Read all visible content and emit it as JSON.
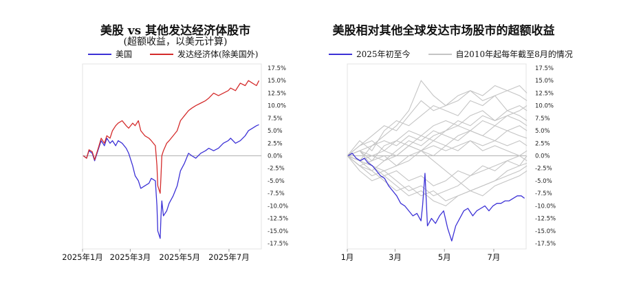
{
  "chart_data": [
    {
      "type": "line",
      "title": "美股 vs 其他发达经济体股市",
      "subtitle": "(超额收益，以美元计算)",
      "x_tick_labels": [
        "2025年1月",
        "2025年3月",
        "2025年5月",
        "2025年7月"
      ],
      "y_tick_labels": [
        "17.5%",
        "15.0%",
        "12.5%",
        "10.0%",
        "7.5%",
        "5.0%",
        "2.5%",
        "0.0%",
        "-2.5%",
        "-5.0%",
        "-7.5%",
        "-10.0%",
        "-12.5%",
        "-15.0%",
        "-17.5%"
      ],
      "ylim": [
        -17.5,
        17.5
      ],
      "x_months": [
        "2025-01-01",
        "2025-03-01",
        "2025-05-01",
        "2025-07-01"
      ],
      "series": [
        {
          "name": "美国",
          "color": "#3b30d6",
          "x": [
            "2025-01-02",
            "2025-01-06",
            "2025-01-09",
            "2025-01-13",
            "2025-01-16",
            "2025-01-21",
            "2025-01-24",
            "2025-01-28",
            "2025-01-31",
            "2025-02-04",
            "2025-02-07",
            "2025-02-11",
            "2025-02-14",
            "2025-02-19",
            "2025-02-24",
            "2025-02-27",
            "2025-03-04",
            "2025-03-07",
            "2025-03-11",
            "2025-03-14",
            "2025-03-19",
            "2025-03-24",
            "2025-03-27",
            "2025-04-01",
            "2025-04-03",
            "2025-04-04",
            "2025-04-07",
            "2025-04-08",
            "2025-04-09",
            "2025-04-11",
            "2025-04-15",
            "2025-04-18",
            "2025-04-23",
            "2025-04-28",
            "2025-05-02",
            "2025-05-07",
            "2025-05-12",
            "2025-05-16",
            "2025-05-21",
            "2025-05-27",
            "2025-06-02",
            "2025-06-06",
            "2025-06-12",
            "2025-06-18",
            "2025-06-24",
            "2025-06-30",
            "2025-07-03",
            "2025-07-09",
            "2025-07-15",
            "2025-07-21",
            "2025-07-25",
            "2025-07-30",
            "2025-08-04",
            "2025-08-07"
          ],
          "values": [
            0.0,
            -0.5,
            1.0,
            0.5,
            -1.0,
            1.5,
            3.0,
            2.0,
            3.5,
            2.5,
            3.0,
            2.0,
            3.0,
            2.5,
            1.5,
            0.5,
            -2.0,
            -4.0,
            -5.0,
            -6.5,
            -6.0,
            -5.5,
            -4.5,
            -5.0,
            -10.0,
            -15.0,
            -16.5,
            -12.0,
            -9.0,
            -12.0,
            -11.0,
            -9.5,
            -8.0,
            -6.0,
            -3.0,
            -1.5,
            0.5,
            0.0,
            -0.5,
            0.5,
            1.0,
            1.5,
            1.0,
            1.5,
            2.5,
            3.0,
            3.5,
            2.5,
            3.0,
            4.0,
            5.0,
            5.5,
            6.0,
            6.2
          ]
        },
        {
          "name": "发达经济体(除美国外)",
          "color": "#d42a2a",
          "x": [
            "2025-01-02",
            "2025-01-06",
            "2025-01-09",
            "2025-01-13",
            "2025-01-16",
            "2025-01-21",
            "2025-01-24",
            "2025-01-28",
            "2025-01-31",
            "2025-02-04",
            "2025-02-07",
            "2025-02-11",
            "2025-02-14",
            "2025-02-19",
            "2025-02-24",
            "2025-02-27",
            "2025-03-04",
            "2025-03-07",
            "2025-03-11",
            "2025-03-14",
            "2025-03-19",
            "2025-03-24",
            "2025-03-27",
            "2025-04-01",
            "2025-04-03",
            "2025-04-04",
            "2025-04-07",
            "2025-04-08",
            "2025-04-09",
            "2025-04-11",
            "2025-04-15",
            "2025-04-18",
            "2025-04-23",
            "2025-04-28",
            "2025-05-02",
            "2025-05-07",
            "2025-05-12",
            "2025-05-16",
            "2025-05-21",
            "2025-05-27",
            "2025-06-02",
            "2025-06-06",
            "2025-06-12",
            "2025-06-18",
            "2025-06-24",
            "2025-06-30",
            "2025-07-03",
            "2025-07-09",
            "2025-07-15",
            "2025-07-21",
            "2025-07-25",
            "2025-07-30",
            "2025-08-04",
            "2025-08-07"
          ],
          "values": [
            0.0,
            -0.5,
            1.2,
            0.8,
            -0.8,
            1.8,
            3.5,
            2.5,
            4.0,
            3.5,
            5.0,
            6.0,
            6.5,
            7.0,
            6.0,
            5.5,
            6.5,
            6.0,
            7.0,
            5.0,
            4.0,
            3.5,
            3.0,
            2.0,
            -2.0,
            -6.0,
            -7.5,
            -4.0,
            0.0,
            1.0,
            2.5,
            3.0,
            4.0,
            5.0,
            7.0,
            8.0,
            9.0,
            9.5,
            10.0,
            10.5,
            11.0,
            11.5,
            12.5,
            12.0,
            12.5,
            13.0,
            13.5,
            13.0,
            14.5,
            14.0,
            15.0,
            14.5,
            14.0,
            15.0
          ]
        }
      ]
    },
    {
      "type": "line",
      "title": "美股相对其他全球发达市场股市的超额收益",
      "x_tick_labels": [
        "1月",
        "3月",
        "5月",
        "7月"
      ],
      "y_tick_labels": [
        "17.5%",
        "15.0%",
        "12.5%",
        "10.0%",
        "7.5%",
        "5.0%",
        "2.5%",
        "0.0%",
        "-2.5%",
        "-5.0%",
        "-7.5%",
        "-10.0%",
        "-12.5%",
        "-15.0%",
        "-17.5%"
      ],
      "ylim": [
        -17.5,
        17.5
      ],
      "x_months": [
        "2025-01-01",
        "2025-03-01",
        "2025-05-01",
        "2025-07-01"
      ],
      "series": [
        {
          "name": "2025年初至今",
          "color": "#3b30d6",
          "x": [
            "2025-01-02",
            "2025-01-07",
            "2025-01-12",
            "2025-01-17",
            "2025-01-22",
            "2025-01-27",
            "2025-02-01",
            "2025-02-06",
            "2025-02-11",
            "2025-02-16",
            "2025-02-21",
            "2025-02-26",
            "2025-03-03",
            "2025-03-08",
            "2025-03-13",
            "2025-03-18",
            "2025-03-23",
            "2025-03-28",
            "2025-04-02",
            "2025-04-04",
            "2025-04-07",
            "2025-04-10",
            "2025-04-15",
            "2025-04-20",
            "2025-04-25",
            "2025-04-30",
            "2025-05-05",
            "2025-05-10",
            "2025-05-15",
            "2025-05-20",
            "2025-05-25",
            "2025-05-30",
            "2025-06-05",
            "2025-06-10",
            "2025-06-15",
            "2025-06-20",
            "2025-06-25",
            "2025-06-30",
            "2025-07-05",
            "2025-07-10",
            "2025-07-15",
            "2025-07-20",
            "2025-07-25",
            "2025-07-30",
            "2025-08-04",
            "2025-08-08"
          ],
          "values": [
            0.0,
            0.5,
            -0.5,
            -1.0,
            -0.5,
            -1.5,
            -2.0,
            -3.0,
            -4.0,
            -4.5,
            -6.0,
            -7.0,
            -8.0,
            -9.5,
            -10.0,
            -11.0,
            -12.0,
            -11.5,
            -13.0,
            -10.0,
            -3.5,
            -14.0,
            -12.5,
            -13.5,
            -12.0,
            -11.0,
            -14.5,
            -17.0,
            -14.0,
            -12.5,
            -11.0,
            -10.5,
            -12.0,
            -11.0,
            -10.5,
            -10.0,
            -11.0,
            -10.0,
            -9.5,
            -9.5,
            -9.0,
            -9.0,
            -8.5,
            -8.0,
            -8.0,
            -8.5
          ]
        },
        {
          "name": "自2010年起每年截至8月的情况",
          "color": "#c4c4c4",
          "x_months_index": [
            0,
            0.5,
            1,
            1.5,
            2,
            2.5,
            3,
            3.5,
            4,
            4.5,
            5,
            5.5,
            6,
            6.5,
            7,
            7.3
          ],
          "lines": [
            [
              0,
              2,
              4,
              6,
              5,
              8,
              11,
              9,
              10,
              12,
              13,
              11,
              12,
              13,
              14,
              12.5
            ],
            [
              0,
              -1,
              2,
              4,
              6,
              9,
              15,
              12,
              10,
              11,
              13,
              12,
              14,
              13,
              12,
              11
            ],
            [
              0,
              3,
              1,
              5,
              7,
              6,
              8,
              10,
              9,
              8,
              11,
              10,
              12,
              9,
              10,
              9
            ],
            [
              0,
              1,
              -1,
              2,
              3,
              5,
              4,
              6,
              7,
              6,
              8,
              9,
              7,
              8,
              9,
              10
            ],
            [
              0,
              -2,
              -3,
              -1,
              1,
              3,
              2,
              4,
              5,
              7,
              6,
              8,
              7,
              9,
              8,
              7
            ],
            [
              0,
              2,
              3,
              1,
              0,
              2,
              4,
              3,
              5,
              6,
              5,
              7,
              6,
              8,
              7,
              6
            ],
            [
              0,
              -1,
              0,
              1,
              3,
              2,
              1,
              3,
              2,
              4,
              5,
              4,
              6,
              5,
              6,
              5
            ],
            [
              0,
              1,
              2,
              3,
              2,
              4,
              3,
              5,
              4,
              3,
              5,
              4,
              3,
              5,
              4,
              3.5
            ],
            [
              0,
              -2,
              -1,
              0,
              -2,
              -1,
              1,
              0,
              2,
              1,
              3,
              2,
              3,
              2,
              3,
              2
            ],
            [
              0,
              1,
              0,
              -1,
              0,
              2,
              1,
              2,
              1,
              2,
              3,
              1,
              2,
              1,
              0,
              -1
            ],
            [
              0,
              -1,
              -2,
              -4,
              -3,
              -5,
              -4,
              -6,
              -5,
              -3,
              -4,
              -2,
              -3,
              -1,
              -2,
              -1.5
            ],
            [
              0,
              -1,
              -3,
              -5,
              -7,
              -6,
              -8,
              -7,
              -9,
              -8,
              -7,
              -6,
              -5,
              -4,
              -3,
              -2
            ],
            [
              0,
              -2,
              -4,
              -3,
              -5,
              -7,
              -6,
              -8,
              -7,
              -6,
              -4,
              -3,
              -2,
              -1,
              0,
              1
            ],
            [
              0,
              -3,
              -5,
              -4,
              -6,
              -8,
              -7,
              -9,
              -10,
              -8,
              -7,
              -8,
              -6,
              -5,
              -4,
              -3
            ],
            [
              0,
              1,
              -2,
              -3,
              -2,
              0,
              1,
              -1,
              -3,
              -5,
              -7,
              -6,
              -5,
              -3,
              -2,
              0
            ]
          ]
        }
      ]
    }
  ]
}
